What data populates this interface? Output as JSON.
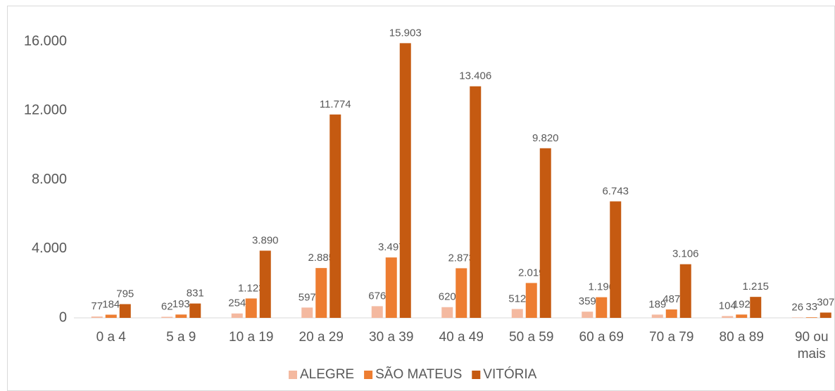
{
  "chart_data": {
    "type": "bar",
    "categories": [
      "0 a 4",
      "5 a 9",
      "10 a 19",
      "20 a 29",
      "30 a 39",
      "40 a 49",
      "50 a 59",
      "60 a 69",
      "70 a 79",
      "80 a 89",
      "90 ou mais"
    ],
    "series": [
      {
        "name": "ALEGRE",
        "color": "#f4b9a0",
        "values": [
          77,
          62,
          254,
          597,
          676,
          620,
          512,
          359,
          189,
          104,
          26
        ],
        "value_labels": [
          "77",
          "62",
          "254",
          "597",
          "676",
          "620",
          "512",
          "359",
          "189",
          "104",
          "26"
        ]
      },
      {
        "name": "SÃO MATEUS",
        "color": "#ed7d31",
        "values": [
          184,
          193,
          1123,
          2885,
          3497,
          2873,
          2019,
          1196,
          487,
          192,
          33
        ],
        "value_labels": [
          "184",
          "193",
          "1.123",
          "2.885",
          "3.497",
          "2.873",
          "2.019",
          "1.196",
          "487",
          "192",
          "33"
        ]
      },
      {
        "name": "VITÓRIA",
        "color": "#c55a11",
        "values": [
          795,
          831,
          3890,
          11774,
          15903,
          13406,
          9820,
          6743,
          3106,
          1215,
          307
        ],
        "value_labels": [
          "795",
          "831",
          "3.890",
          "11.774",
          "15.903",
          "13.406",
          "9.820",
          "6.743",
          "3.106",
          "1.215",
          "307"
        ]
      }
    ],
    "ylim": [
      0,
      16000
    ],
    "yticks": [
      0,
      {
        "value": 4000,
        "label": "4.000"
      },
      {
        "value": 8000,
        "label": "8.000"
      },
      {
        "value": 12000,
        "label": "12.000"
      },
      {
        "value": 16000,
        "label": "16.000"
      }
    ],
    "grid": false,
    "legend": "bottom"
  }
}
